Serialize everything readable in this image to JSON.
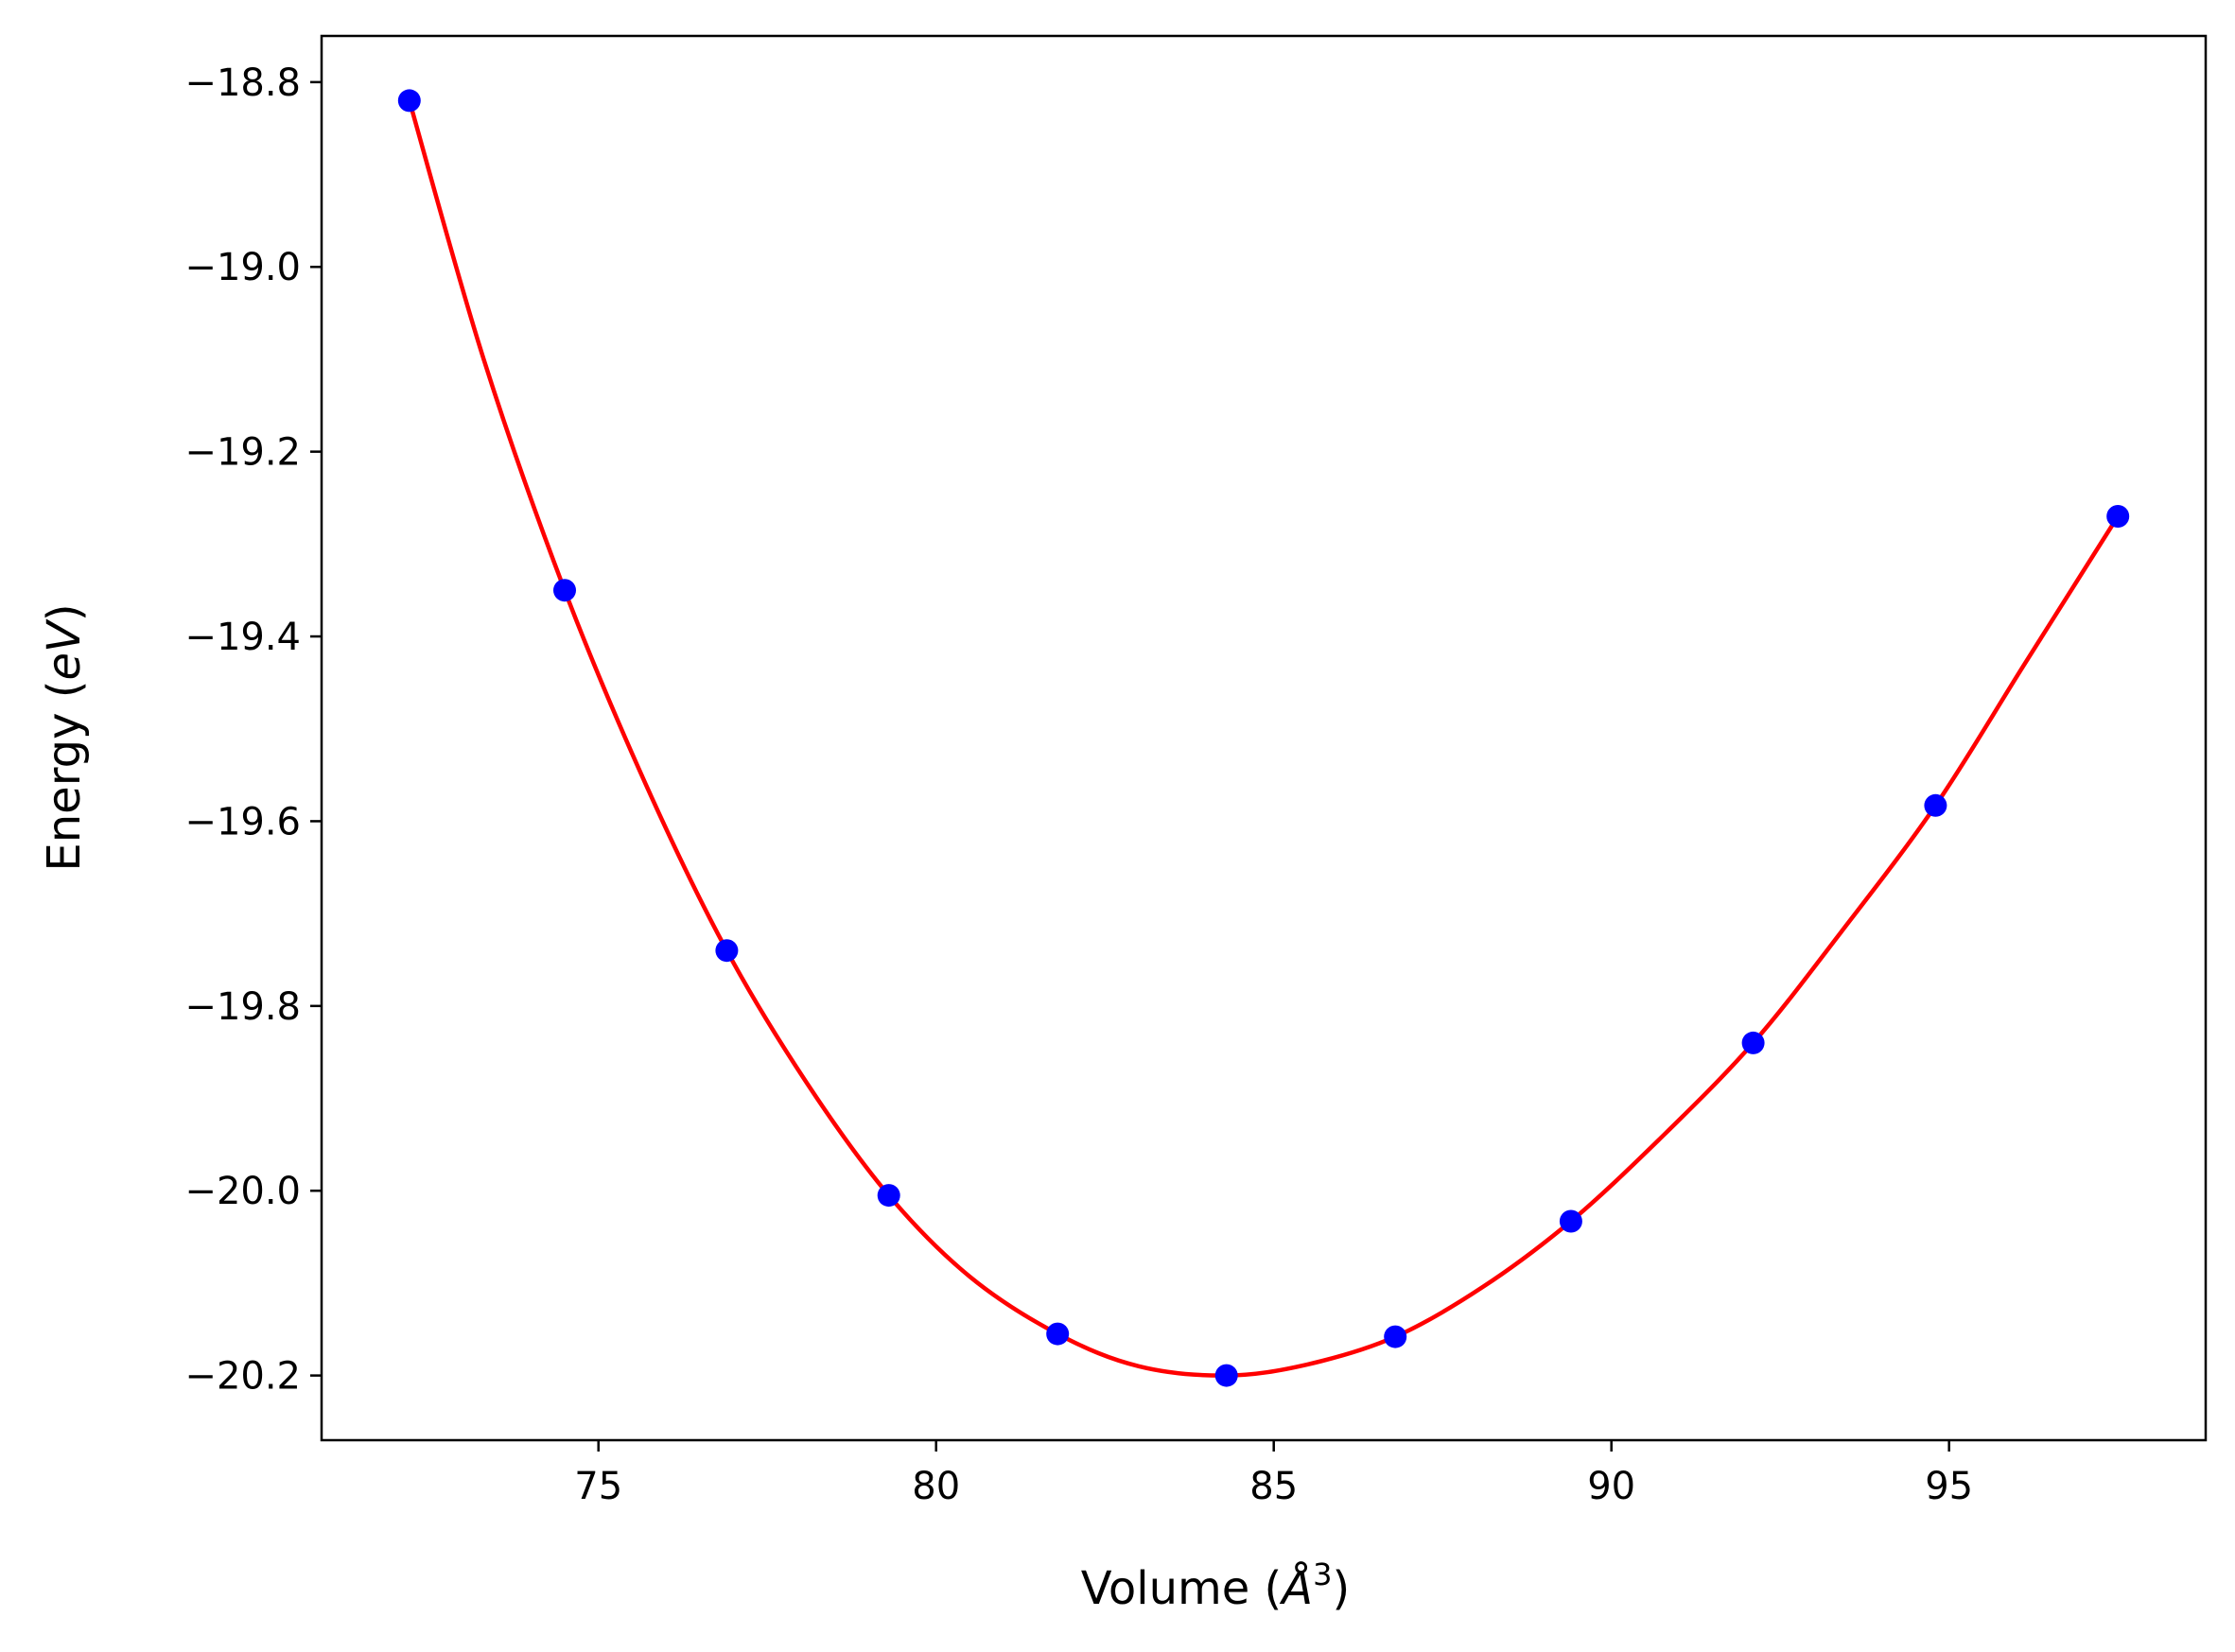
{
  "chart_data": {
    "type": "scatter",
    "title": "",
    "xlabel": {
      "base": "Volume (",
      "italic": "Å",
      "sup": "3",
      "end": ")"
    },
    "ylabel": {
      "base": "Energy (",
      "italic": "eV",
      "end": ")"
    },
    "xlim": [
      70.9,
      98.8
    ],
    "ylim": [
      -20.27,
      -18.75
    ],
    "xticks": [
      75,
      80,
      85,
      90,
      95
    ],
    "xtick_labels": [
      "75",
      "80",
      "85",
      "90",
      "95"
    ],
    "yticks": [
      -18.8,
      -19.0,
      -19.2,
      -19.4,
      -19.6,
      -19.8,
      -20.0,
      -20.2
    ],
    "ytick_labels": [
      "−18.8",
      "−19.0",
      "−19.2",
      "−19.4",
      "−19.6",
      "−19.8",
      "−20.0",
      "−20.2"
    ],
    "grid": false,
    "series": [
      {
        "kind": "points",
        "color": "#0000ff",
        "x": [
          72.2,
          74.5,
          76.9,
          79.3,
          81.8,
          84.3,
          86.8,
          89.4,
          92.1,
          94.8,
          97.5
        ],
        "y": [
          -18.82,
          -19.35,
          -19.74,
          -20.005,
          -20.155,
          -20.2,
          -20.158,
          -20.033,
          -19.84,
          -19.583,
          -19.27
        ]
      },
      {
        "kind": "fit-curve",
        "color": "#ff0000",
        "x": [
          72.2,
          73.3,
          74.5,
          75.7,
          76.9,
          78.1,
          79.3,
          80.5,
          81.8,
          83.0,
          84.3,
          85.5,
          86.8,
          88.1,
          89.4,
          90.7,
          92.1,
          93.4,
          94.8,
          96.1,
          97.5
        ],
        "y": [
          -18.82,
          -19.1,
          -19.35,
          -19.56,
          -19.74,
          -19.885,
          -20.005,
          -20.093,
          -20.155,
          -20.19,
          -20.2,
          -20.188,
          -20.158,
          -20.104,
          -20.033,
          -19.945,
          -19.84,
          -19.72,
          -19.583,
          -19.432,
          -19.27
        ]
      }
    ]
  }
}
